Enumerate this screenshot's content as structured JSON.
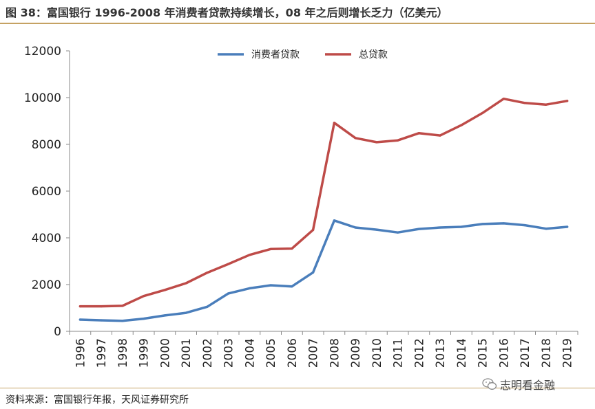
{
  "title": "图 38：富国银行 1996-2008 年消费者贷款持续增长，08 年之后则增长乏力（亿美元）",
  "source": "资料来源：富国银行年报，天风证券研究所",
  "watermark": {
    "text": "志明看金融",
    "icon": "wechat-icon"
  },
  "colors": {
    "accent": "#c5a263",
    "consumer": "#4a7ebb",
    "total": "#be4b48",
    "axis": "#888888"
  },
  "chart_data": {
    "type": "line",
    "title": "",
    "xlabel": "",
    "ylabel": "",
    "grid": false,
    "legend_position": "top-center",
    "ylim": [
      0,
      12000
    ],
    "yticks": [
      "0",
      "2000",
      "4000",
      "6000",
      "8000",
      "10000",
      "12000"
    ],
    "categories": [
      "1996",
      "1997",
      "1998",
      "1999",
      "2000",
      "2001",
      "2002",
      "2003",
      "2004",
      "2005",
      "2006",
      "2007",
      "2008",
      "2009",
      "2010",
      "2011",
      "2012",
      "2013",
      "2014",
      "2015",
      "2016",
      "2017",
      "2018",
      "2019"
    ],
    "series": [
      {
        "name": "消费者贷款",
        "values": [
          500,
          470,
          450,
          540,
          680,
          790,
          1050,
          1620,
          1840,
          1970,
          1920,
          2520,
          4740,
          4440,
          4350,
          4230,
          4380,
          4440,
          4470,
          4590,
          4620,
          4540,
          4390,
          4470
        ]
      },
      {
        "name": "总贷款",
        "values": [
          1070,
          1070,
          1090,
          1510,
          1770,
          2060,
          2510,
          2880,
          3270,
          3520,
          3540,
          4340,
          8920,
          8270,
          8090,
          8170,
          8480,
          8380,
          8820,
          9340,
          9950,
          9770,
          9700,
          9860
        ]
      }
    ]
  }
}
